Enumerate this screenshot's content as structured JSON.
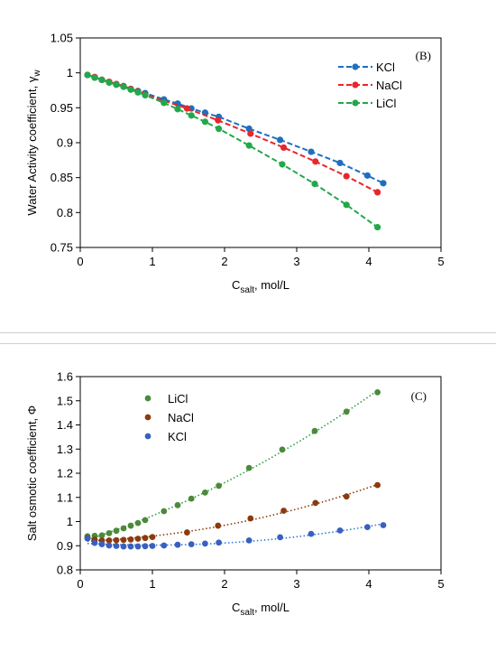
{
  "chart_data": [
    {
      "type": "line",
      "panel_label": "(B)",
      "xlabel_main": "C",
      "xlabel_sub": "salt",
      "xlabel_unit": ", mol/L",
      "ylabel": "Water Activity coefficient, γ",
      "ylabel_sub": "w",
      "xlim": [
        0,
        5
      ],
      "ylim": [
        0.75,
        1.05
      ],
      "xticks": [
        0,
        1,
        2,
        3,
        4,
        5
      ],
      "yticks": [
        0.75,
        0.8,
        0.85,
        0.9,
        0.95,
        1,
        1.05
      ],
      "ytick_labels": [
        "0.75",
        "0.8",
        "0.85",
        "0.9",
        "0.95",
        "1",
        "1.05"
      ],
      "grid": false,
      "legend_position": "top-right",
      "series": [
        {
          "name": "KCl",
          "color": "#1f6fbf",
          "x": [
            0.1,
            0.2,
            0.3,
            0.4,
            0.5,
            0.6,
            0.7,
            0.8,
            0.9,
            1.16,
            1.35,
            1.54,
            1.73,
            1.92,
            2.34,
            2.77,
            3.2,
            3.6,
            3.98,
            4.2
          ],
          "y": [
            0.997,
            0.994,
            0.99,
            0.987,
            0.984,
            0.981,
            0.977,
            0.974,
            0.971,
            0.962,
            0.956,
            0.949,
            0.943,
            0.937,
            0.92,
            0.904,
            0.887,
            0.871,
            0.853,
            0.842
          ]
        },
        {
          "name": "NaCl",
          "color": "#e8262b",
          "x": [
            0.1,
            0.2,
            0.3,
            0.4,
            0.5,
            0.6,
            0.7,
            0.8,
            0.9,
            1.48,
            1.91,
            2.36,
            2.82,
            3.26,
            3.69,
            4.12
          ],
          "y": [
            0.997,
            0.994,
            0.99,
            0.987,
            0.984,
            0.981,
            0.977,
            0.973,
            0.969,
            0.949,
            0.932,
            0.913,
            0.893,
            0.873,
            0.852,
            0.829
          ]
        },
        {
          "name": "LiCl",
          "color": "#22a84a",
          "x": [
            0.1,
            0.2,
            0.3,
            0.4,
            0.5,
            0.6,
            0.7,
            0.8,
            0.9,
            1.16,
            1.35,
            1.54,
            1.73,
            1.92,
            2.34,
            2.8,
            3.25,
            3.69,
            4.12
          ],
          "y": [
            0.997,
            0.993,
            0.99,
            0.986,
            0.983,
            0.98,
            0.976,
            0.972,
            0.968,
            0.957,
            0.948,
            0.939,
            0.93,
            0.92,
            0.896,
            0.869,
            0.841,
            0.811,
            0.779
          ]
        }
      ]
    },
    {
      "type": "scatter",
      "panel_label": "(C)",
      "xlabel_main": "C",
      "xlabel_sub": "salt",
      "xlabel_unit": ", mol/L",
      "ylabel": "Salt osmotic coefficient, Φ",
      "xlim": [
        0,
        5
      ],
      "ylim": [
        0.8,
        1.6
      ],
      "xticks": [
        0,
        1,
        2,
        3,
        4,
        5
      ],
      "yticks": [
        0.8,
        0.9,
        1,
        1.1,
        1.2,
        1.3,
        1.4,
        1.5,
        1.6
      ],
      "ytick_labels": [
        "0.8",
        "0.9",
        "1",
        "1.1",
        "1.2",
        "1.3",
        "1.4",
        "1.5",
        "1.6"
      ],
      "grid": false,
      "legend_position": "top-left",
      "series": [
        {
          "name": "LiCl",
          "color": "#4a8a3a",
          "trend_color": "#2e9e3e",
          "x": [
            0.1,
            0.2,
            0.3,
            0.4,
            0.5,
            0.6,
            0.7,
            0.8,
            0.9,
            1.16,
            1.35,
            1.54,
            1.73,
            1.92,
            2.34,
            2.8,
            3.25,
            3.69,
            4.12
          ],
          "y": [
            0.939,
            0.941,
            0.943,
            0.952,
            0.962,
            0.972,
            0.983,
            0.994,
            1.006,
            1.043,
            1.068,
            1.095,
            1.12,
            1.148,
            1.222,
            1.298,
            1.375,
            1.455,
            1.535
          ]
        },
        {
          "name": "NaCl",
          "color": "#8b3a0e",
          "trend_color": "#8b3a0e",
          "x": [
            0.1,
            0.2,
            0.3,
            0.4,
            0.5,
            0.6,
            0.7,
            0.8,
            0.9,
            1.0,
            1.48,
            1.91,
            2.36,
            2.82,
            3.26,
            3.69,
            4.12
          ],
          "y": [
            0.932,
            0.925,
            0.922,
            0.922,
            0.923,
            0.924,
            0.926,
            0.929,
            0.932,
            0.936,
            0.955,
            0.983,
            1.013,
            1.045,
            1.077,
            1.104,
            1.151
          ]
        },
        {
          "name": "KCl",
          "color": "#3a5fbf",
          "trend_color": "#2b7bd6",
          "x": [
            0.1,
            0.2,
            0.3,
            0.4,
            0.5,
            0.6,
            0.7,
            0.8,
            0.9,
            1.0,
            1.16,
            1.35,
            1.54,
            1.73,
            1.92,
            2.34,
            2.77,
            3.2,
            3.6,
            3.98,
            4.2
          ],
          "y": [
            0.93,
            0.912,
            0.906,
            0.901,
            0.899,
            0.897,
            0.897,
            0.897,
            0.898,
            0.899,
            0.901,
            0.904,
            0.906,
            0.909,
            0.913,
            0.922,
            0.935,
            0.949,
            0.963,
            0.977,
            0.985
          ]
        }
      ]
    }
  ]
}
